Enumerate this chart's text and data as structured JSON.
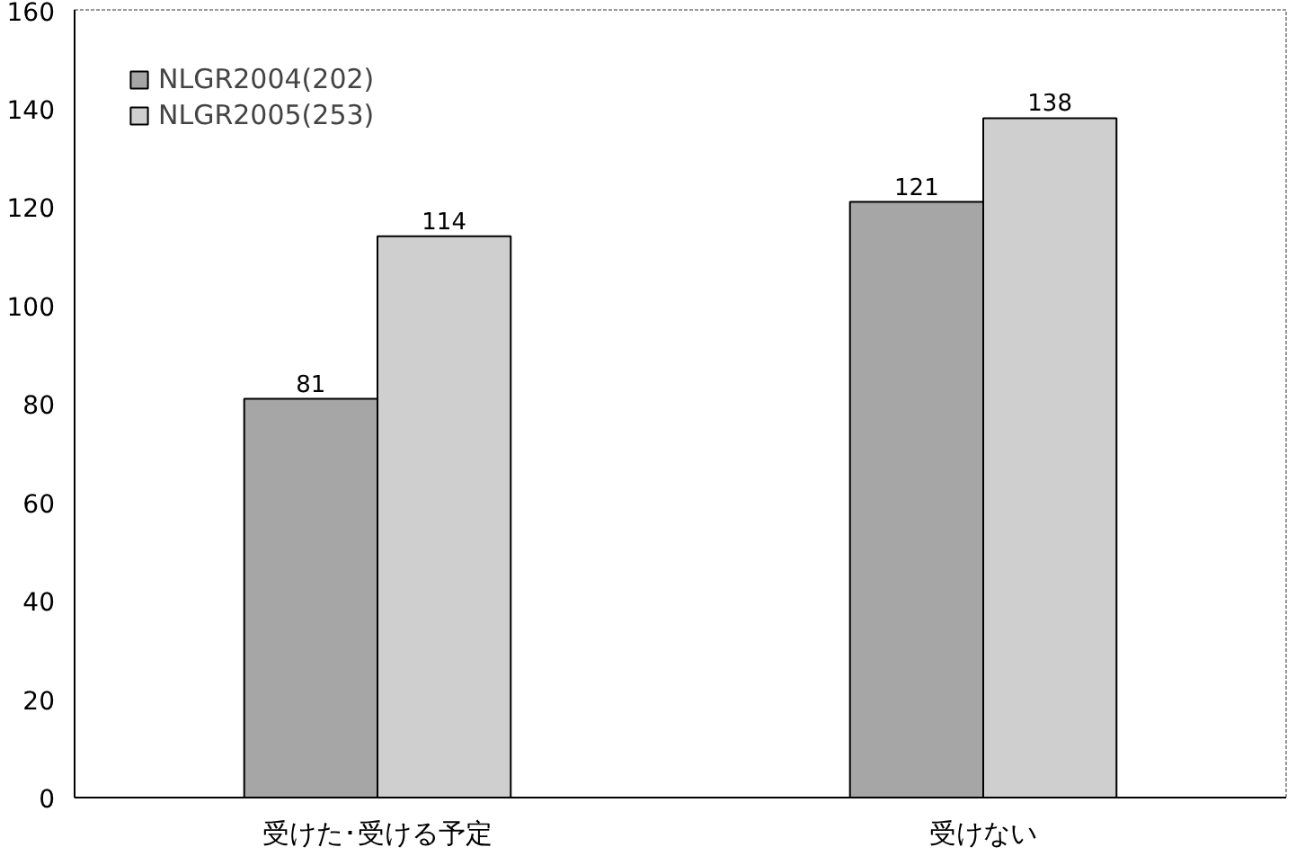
{
  "chart_data": {
    "type": "bar",
    "categories": [
      "受けた･受ける予定",
      "受けない"
    ],
    "series": [
      {
        "name": "NLGR2004(202)",
        "color": "#a6a6a6",
        "values": [
          81,
          121
        ]
      },
      {
        "name": "NLGR2005(253)",
        "color": "#cfcfcf",
        "values": [
          114,
          138
        ]
      }
    ],
    "ylim": [
      0,
      160
    ],
    "yticks": [
      0,
      20,
      40,
      60,
      80,
      100,
      120,
      140,
      160
    ],
    "data_labels": true,
    "legend": "top left",
    "grid": false
  }
}
